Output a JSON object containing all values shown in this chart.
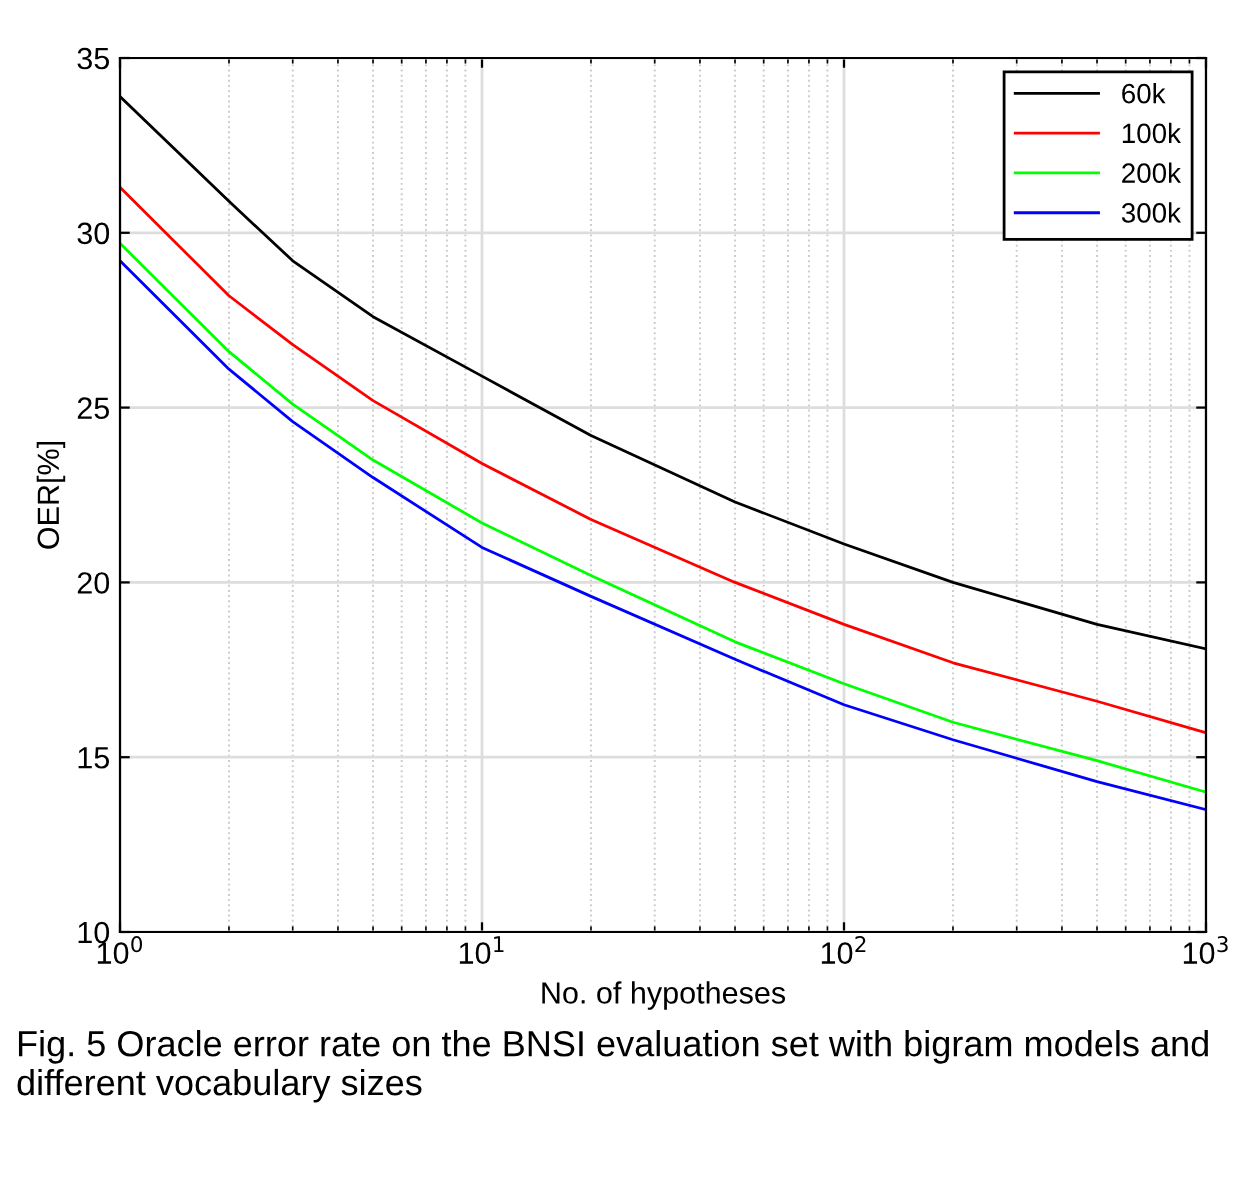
{
  "chart_data": {
    "type": "line",
    "xlabel": "No. of hypotheses",
    "ylabel": "OER[%]",
    "x": [
      1,
      2,
      3,
      5,
      10,
      20,
      50,
      100,
      200,
      500,
      1000
    ],
    "series": [
      {
        "name": "60k",
        "color": "#000000",
        "values": [
          33.9,
          30.9,
          29.2,
          27.6,
          25.9,
          24.2,
          22.3,
          21.1,
          20.0,
          18.8,
          18.1
        ]
      },
      {
        "name": "100k",
        "color": "#ff0000",
        "values": [
          31.3,
          28.2,
          26.8,
          25.2,
          23.4,
          21.8,
          20.0,
          18.8,
          17.7,
          16.6,
          15.7
        ]
      },
      {
        "name": "200k",
        "color": "#00ff00",
        "values": [
          29.7,
          26.6,
          25.1,
          23.5,
          21.7,
          20.2,
          18.3,
          17.1,
          16.0,
          14.9,
          14.0
        ]
      },
      {
        "name": "300k",
        "color": "#0000ff",
        "values": [
          29.2,
          26.1,
          24.6,
          23.0,
          21.0,
          19.6,
          17.8,
          16.5,
          15.5,
          14.3,
          13.5
        ]
      }
    ],
    "log": "x",
    "xlim": [
      1,
      1000
    ],
    "xticks": [
      {
        "value": 1,
        "label": "10$^{0}$"
      },
      {
        "value": 10,
        "label": "10$^{1}$"
      },
      {
        "value": 100,
        "label": "10$^{2}$"
      },
      {
        "value": 1000,
        "label": "10$^{3}$"
      }
    ],
    "ylim": [
      10,
      35
    ],
    "yticks": [
      10,
      15,
      20,
      25,
      30,
      35
    ],
    "grid": true,
    "legend": "top right",
    "line_style": "solid",
    "marker": "none",
    "annotations": [
      "Fig. 5 Oracle error rate on the BNSI evaluation set with bigram models and different vocabulary sizes"
    ]
  }
}
